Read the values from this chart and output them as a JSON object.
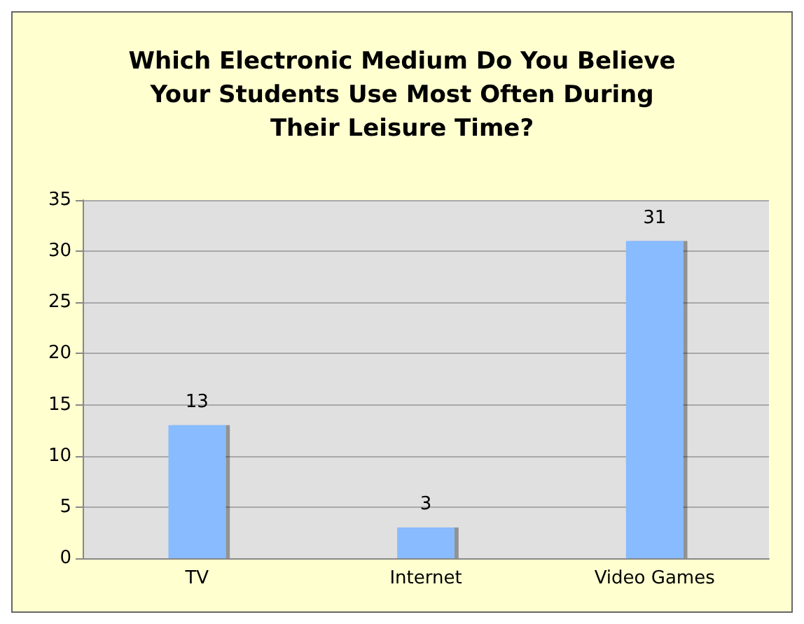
{
  "chart_data": {
    "type": "bar",
    "title": "Which Electronic Medium Do You Believe\nYour Students Use Most Often During\nTheir Leisure Time?",
    "categories": [
      "TV",
      "Internet",
      "Video Games"
    ],
    "values": [
      13,
      3,
      31
    ],
    "color": "#88bbff",
    "ylim": [
      0,
      35
    ],
    "yticks": [
      0,
      5,
      10,
      15,
      20,
      25,
      30,
      35
    ],
    "grid": "y",
    "data_labels": true
  }
}
